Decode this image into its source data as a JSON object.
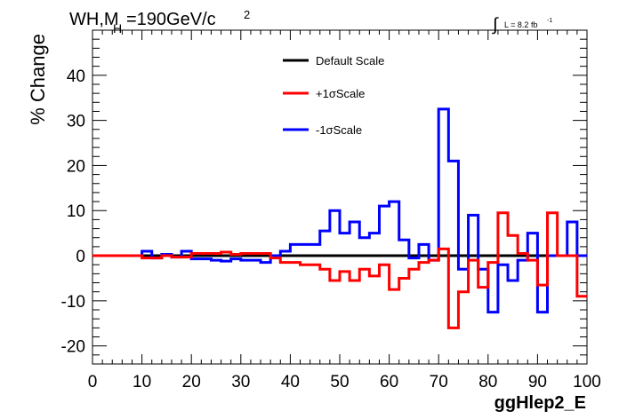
{
  "title": {
    "main_1": "WH,M",
    "main_sub": "H",
    "main_2": "=190GeV/c",
    "main_sup": "2"
  },
  "luminosity": {
    "integral_sign": "∫",
    "text": "L = 8.2 fb",
    "sup": "-1"
  },
  "chart_data": {
    "type": "line",
    "xlabel": "ggHlep2_E",
    "ylabel": "% Change",
    "xlim": [
      0,
      100
    ],
    "ylim": [
      -24,
      50
    ],
    "x_ticks": [
      0,
      10,
      20,
      30,
      40,
      50,
      60,
      70,
      80,
      90,
      100
    ],
    "y_ticks": [
      -20,
      -10,
      0,
      10,
      20,
      30,
      40
    ],
    "grid": false,
    "legend_position": "top-center",
    "bin_edges": [
      0,
      2,
      4,
      6,
      8,
      10,
      12,
      14,
      16,
      18,
      20,
      22,
      24,
      26,
      28,
      30,
      32,
      34,
      36,
      38,
      40,
      42,
      44,
      46,
      48,
      50,
      52,
      54,
      56,
      58,
      60,
      62,
      64,
      66,
      68,
      70,
      72,
      74,
      76,
      78,
      80,
      82,
      84,
      86,
      88,
      90,
      92,
      94,
      96,
      98,
      100
    ],
    "series": [
      {
        "name": "Default Scale",
        "color": "#000000",
        "values": [
          0,
          0,
          0,
          0,
          0,
          0,
          0,
          0,
          0,
          0,
          0,
          0,
          0,
          0,
          0,
          0,
          0,
          0,
          0,
          0,
          0,
          0,
          0,
          0,
          0,
          0,
          0,
          0,
          0,
          0,
          0,
          0,
          0,
          0,
          0,
          0,
          0,
          0,
          0,
          0,
          0,
          0,
          0,
          0,
          0,
          0,
          0,
          0,
          0,
          0
        ]
      },
      {
        "name": "+1σScale",
        "color": "#ff0000",
        "values": [
          0,
          0,
          0,
          0,
          0,
          -0.5,
          -0.5,
          0,
          -0.3,
          -0.3,
          0.5,
          0.5,
          0.5,
          0.8,
          0.3,
          0.5,
          0.5,
          0.5,
          -0.5,
          -1.5,
          -1.5,
          -2,
          -2,
          -3,
          -5.5,
          -3.5,
          -5.5,
          -3,
          -4.5,
          -2,
          -7.5,
          -5,
          -3,
          -1.5,
          -1,
          1.5,
          -16,
          -8,
          -1,
          -7,
          -1.5,
          9.5,
          4.5,
          0.5,
          -1,
          -6.5,
          9.5,
          0,
          0,
          -9
        ]
      },
      {
        "name": "-1σScale",
        "color": "#0000ff",
        "values": [
          0,
          0,
          0,
          0,
          0,
          1,
          -0.5,
          0.3,
          -0.3,
          1,
          -0.7,
          -0.7,
          -1,
          -1.2,
          -0.7,
          -1,
          -1,
          -1.5,
          0,
          1,
          2.5,
          2.5,
          2.5,
          5.5,
          10,
          5,
          7.5,
          4,
          5,
          11,
          12,
          3.5,
          -0.5,
          2.5,
          -1,
          32.5,
          21,
          -3,
          9,
          -3,
          -12.5,
          -2,
          -5.5,
          -1,
          5,
          -12.5,
          0,
          0,
          7.5,
          0
        ]
      }
    ]
  }
}
